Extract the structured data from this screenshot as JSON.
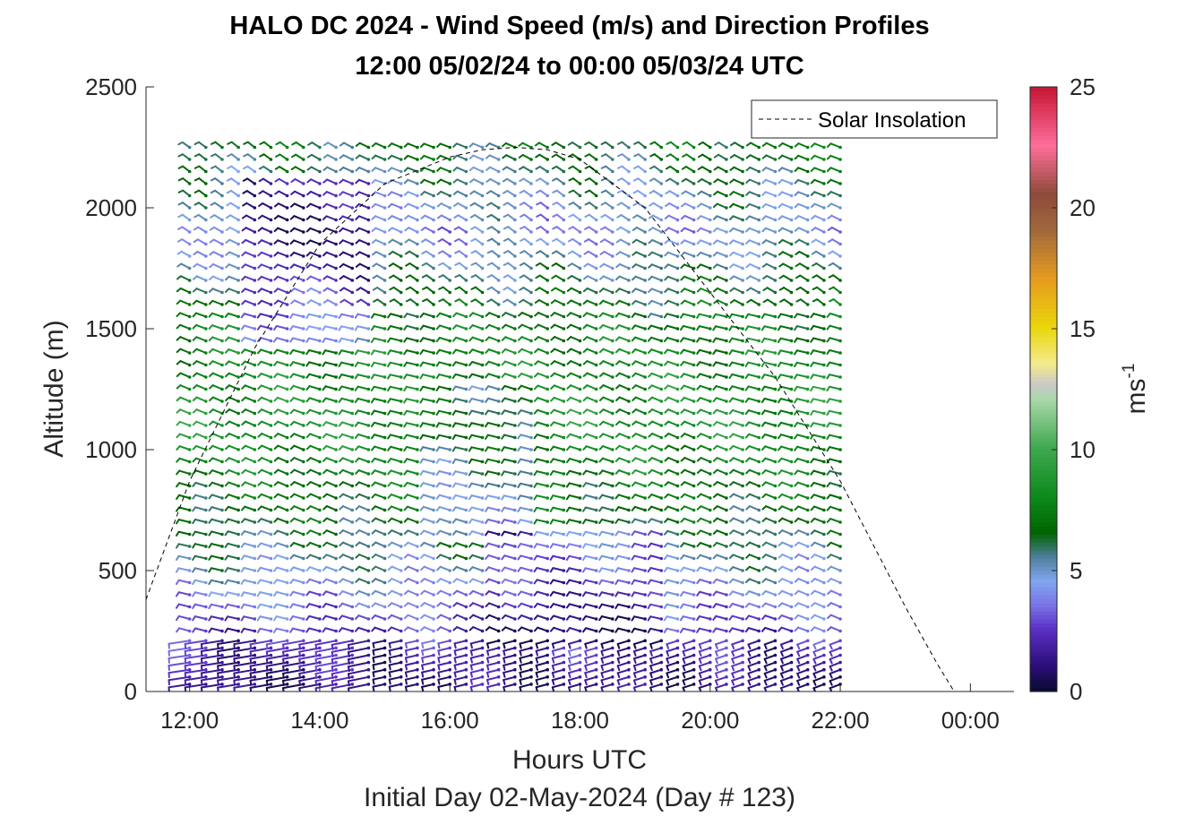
{
  "chart_data": {
    "type": "wind-barb-profile",
    "title_lines": [
      "HALO DC 2024 - Wind Speed (m/s) and Direction Profiles",
      "12:00 05/02/24 to 00:00 05/03/24  UTC"
    ],
    "xlabel": "Hours UTC",
    "xlabel2": "Initial Day 02-May-2024 (Day # 123)",
    "ylabel": "Altitude (m)",
    "x_unit": "hour UTC",
    "xlim": [
      11.33,
      24.67
    ],
    "x_ticks": [
      12,
      14,
      16,
      18,
      20,
      22,
      24
    ],
    "x_tick_labels": [
      "12:00",
      "14:00",
      "16:00",
      "18:00",
      "20:00",
      "22:00",
      "00:00"
    ],
    "ylim": [
      0,
      2500
    ],
    "y_ticks": [
      0,
      500,
      1000,
      1500,
      2000,
      2500
    ],
    "y_tick_labels": [
      "0",
      "500",
      "1000",
      "1500",
      "2000",
      "2500"
    ],
    "colorbar": {
      "label": "ms",
      "label_superscript": "-1",
      "range": [
        0,
        25
      ],
      "ticks": [
        0,
        5,
        10,
        15,
        20,
        25
      ],
      "tick_labels": [
        "0",
        "5",
        "10",
        "15",
        "20",
        "25"
      ],
      "colormap": [
        {
          "value": 0,
          "color": "#0a0a33"
        },
        {
          "value": 1,
          "color": "#2b0e7a"
        },
        {
          "value": 2.5,
          "color": "#5a2fc4"
        },
        {
          "value": 3.5,
          "color": "#7a73e6"
        },
        {
          "value": 4.5,
          "color": "#82a6f0"
        },
        {
          "value": 5.5,
          "color": "#4d7e9a"
        },
        {
          "value": 6.5,
          "color": "#006400"
        },
        {
          "value": 8,
          "color": "#0d8a1c"
        },
        {
          "value": 10,
          "color": "#3fa84f"
        },
        {
          "value": 12,
          "color": "#a8d8a8"
        },
        {
          "value": 12.6,
          "color": "#c8c8c8"
        },
        {
          "value": 13.5,
          "color": "#f4ea8c"
        },
        {
          "value": 15,
          "color": "#ead60a"
        },
        {
          "value": 17,
          "color": "#e69b1e"
        },
        {
          "value": 19,
          "color": "#a0693c"
        },
        {
          "value": 20.5,
          "color": "#8e4a3a"
        },
        {
          "value": 22.5,
          "color": "#ff6e9a"
        },
        {
          "value": 25,
          "color": "#c41230"
        }
      ]
    },
    "legend": {
      "position": "top-right",
      "entries": [
        "Solar Insolation"
      ]
    },
    "solar_insolation": {
      "style": "dashed",
      "color": "#000000",
      "scale": "relative (peak near 2250 on altitude axis)",
      "x": [
        11.33,
        12,
        13,
        14,
        15,
        16,
        16.5,
        17,
        17.5,
        18,
        19,
        20,
        21,
        22,
        23,
        23.5,
        23.75,
        24.67
      ],
      "y": [
        380,
        870,
        1420,
        1850,
        2100,
        2210,
        2240,
        2250,
        2240,
        2200,
        2000,
        1650,
        1300,
        870,
        350,
        110,
        0,
        0
      ]
    },
    "profiles": {
      "description": "Wind barb profiles every ~15 min from 12:00 to 22:00 UTC; barb color = wind speed",
      "start_hour": 12.0,
      "end_hour": 22.0,
      "interval_hours": 0.25,
      "altitude_levels_m": [
        30,
        60,
        90,
        120,
        150,
        180,
        210,
        250,
        300,
        350,
        400,
        450,
        500,
        550,
        600,
        650,
        700,
        750,
        800,
        850,
        900,
        950,
        1000,
        1050,
        1100,
        1150,
        1200,
        1250,
        1300,
        1350,
        1400,
        1450,
        1500,
        1550,
        1600,
        1650,
        1700,
        1750,
        1800,
        1850,
        1900,
        1950,
        2000,
        2050,
        2100,
        2150,
        2200,
        2250
      ],
      "speed_by_altitude_band_ms": [
        {
          "alt": 30,
          "speed": 1.0
        },
        {
          "alt": 250,
          "speed": 2.5
        },
        {
          "alt": 450,
          "speed": 4.5
        },
        {
          "alt": 700,
          "speed": 6.5
        },
        {
          "alt": 1100,
          "speed": 8.5
        },
        {
          "alt": 1500,
          "speed": 7.5
        },
        {
          "alt": 1900,
          "speed": 4.0
        },
        {
          "alt": 2250,
          "speed": 6.5
        }
      ]
    }
  }
}
